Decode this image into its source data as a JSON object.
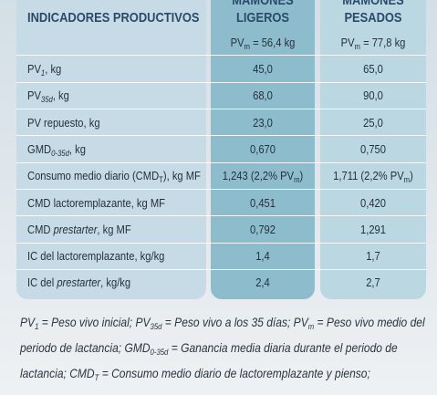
{
  "header": {
    "title": "INDICADORES PRODUCTIVOS",
    "columns": [
      {
        "name": [
          "MAMONES",
          "LIGEROS"
        ],
        "pv": [
          {
            "t": "PV"
          },
          {
            "t": "m",
            "s": "sub"
          },
          {
            "t": " = 56,4 kg"
          }
        ]
      },
      {
        "name": [
          "MAMONES",
          "PESADOS"
        ],
        "pv": [
          {
            "t": "PV"
          },
          {
            "t": "m",
            "s": "sub"
          },
          {
            "t": " = 77,8 kg"
          }
        ]
      }
    ]
  },
  "table": {
    "rows": [
      [
        [
          {
            "t": "PV"
          },
          {
            "t": "1",
            "s": "isub"
          },
          {
            "t": ", kg"
          }
        ],
        [
          {
            "t": "45,0"
          }
        ],
        [
          {
            "t": "65,0"
          }
        ]
      ],
      [
        [
          {
            "t": "PV"
          },
          {
            "t": "35d",
            "s": "isub"
          },
          {
            "t": ", kg"
          }
        ],
        [
          {
            "t": "68,0"
          }
        ],
        [
          {
            "t": "90,0"
          }
        ]
      ],
      [
        [
          {
            "t": "PV repuesto, kg"
          }
        ],
        [
          {
            "t": "23,0"
          }
        ],
        [
          {
            "t": "25,0"
          }
        ]
      ],
      [
        [
          {
            "t": "GMD"
          },
          {
            "t": "0-35d",
            "s": "isub"
          },
          {
            "t": ", kg"
          }
        ],
        [
          {
            "t": "0,670"
          }
        ],
        [
          {
            "t": "0,750"
          }
        ]
      ],
      [
        [
          {
            "t": "Consumo medio diario (CMD"
          },
          {
            "t": "T",
            "s": "sub"
          },
          {
            "t": "), kg MF"
          }
        ],
        [
          {
            "t": "1,243 (2,2% PV"
          },
          {
            "t": "m",
            "s": "sub"
          },
          {
            "t": ")"
          }
        ],
        [
          {
            "t": "1,711 (2,2% PV"
          },
          {
            "t": "m",
            "s": "sub"
          },
          {
            "t": ")"
          }
        ]
      ],
      [
        [
          {
            "t": "CMD lactoremplazante, kg MF"
          }
        ],
        [
          {
            "t": "0,451"
          }
        ],
        [
          {
            "t": "0,420"
          }
        ]
      ],
      [
        [
          {
            "t": "CMD "
          },
          {
            "t": "prestarter",
            "s": "i"
          },
          {
            "t": ", kg MF"
          }
        ],
        [
          {
            "t": "0,792"
          }
        ],
        [
          {
            "t": "1,291"
          }
        ]
      ],
      [
        [
          {
            "t": "IC del lactoremplazante, kg/kg"
          }
        ],
        [
          {
            "t": "1,4"
          }
        ],
        [
          {
            "t": "1,7"
          }
        ]
      ],
      [
        [
          {
            "t": "IC del "
          },
          {
            "t": "prestarter",
            "s": "i"
          },
          {
            "t": ", kg/kg"
          }
        ],
        [
          {
            "t": "2,4"
          }
        ],
        [
          {
            "t": "2,7"
          }
        ]
      ]
    ]
  },
  "footnote": [
    [
      {
        "t": "PV"
      },
      {
        "t": "1",
        "s": "sub"
      },
      {
        "t": " = Peso vivo inicial; PV"
      },
      {
        "t": "35d",
        "s": "sub"
      },
      {
        "t": " = Peso vivo a los 35 días; PV"
      },
      {
        "t": "m",
        "s": "sub"
      },
      {
        "t": " = Peso vivo medio del"
      }
    ],
    [
      {
        "t": "periodo de lactancia; GMD"
      },
      {
        "t": "0-35d",
        "s": "sub"
      },
      {
        "t": " = Ganancia media diaria durante el periodo de"
      }
    ],
    [
      {
        "t": "lactancia; CMD"
      },
      {
        "t": "T",
        "s": "sub"
      },
      {
        "t": " = Consumo medio diario de lactoremplazante y pienso;"
      }
    ]
  ]
}
